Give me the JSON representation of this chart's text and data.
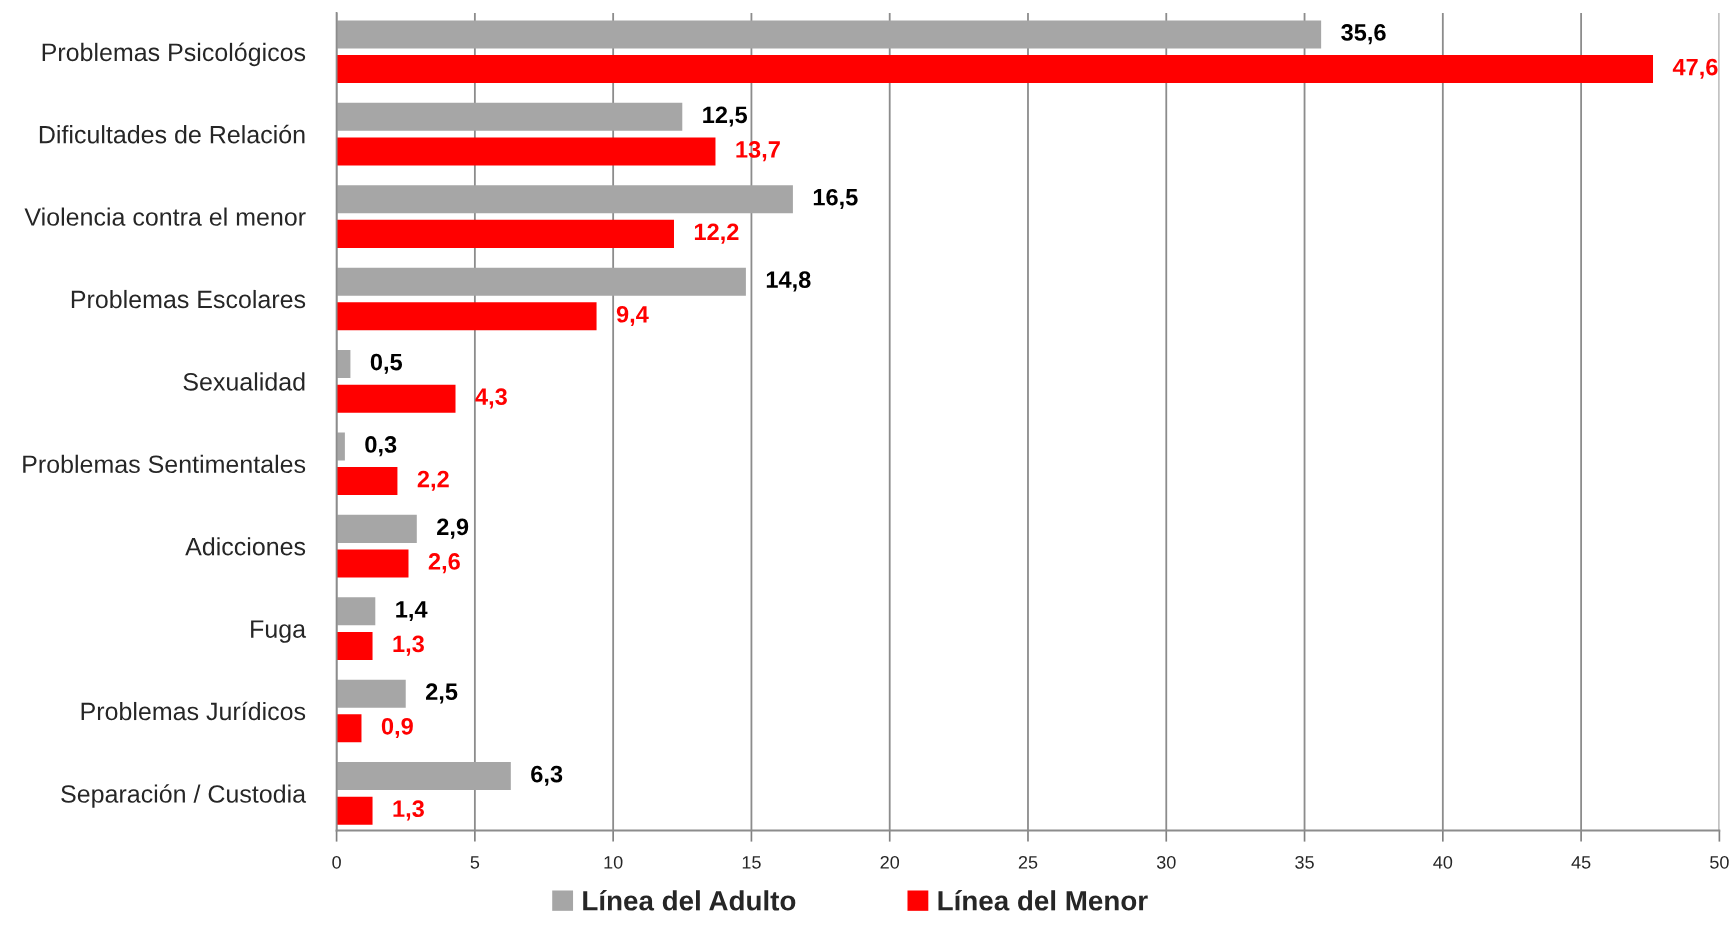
{
  "chart_data": {
    "type": "bar",
    "orientation": "horizontal",
    "categories": [
      "Problemas Psicológicos",
      "Dificultades de Relación",
      "Violencia contra el menor",
      "Problemas Escolares",
      "Sexualidad",
      "Problemas Sentimentales",
      "Adicciones",
      "Fuga",
      "Problemas Jurídicos",
      "Separación / Custodia"
    ],
    "series": [
      {
        "name": "Línea del Adulto",
        "color": "#a6a6a6",
        "values": [
          35.6,
          12.5,
          16.5,
          14.8,
          0.5,
          0.3,
          2.9,
          1.4,
          2.5,
          6.3
        ],
        "value_labels": [
          "35,6",
          "12,5",
          "16,5",
          "14,8",
          "0,5",
          "0,3",
          "2,9",
          "1,4",
          "2,5",
          "6,3"
        ]
      },
      {
        "name": "Línea del Menor",
        "color": "#ff0000",
        "values": [
          47.6,
          13.7,
          12.2,
          9.4,
          4.3,
          2.2,
          2.6,
          1.3,
          0.9,
          1.3
        ],
        "value_labels": [
          "47,6",
          "13,7",
          "12,2",
          "9,4",
          "4,3",
          "2,2",
          "2,6",
          "1,3",
          "0,9",
          "1,3"
        ]
      }
    ],
    "xlim": [
      0,
      50
    ],
    "xticks": [
      0,
      5,
      10,
      15,
      20,
      25,
      30,
      35,
      40,
      45,
      50
    ],
    "grid": "x",
    "legend": "bottom"
  }
}
